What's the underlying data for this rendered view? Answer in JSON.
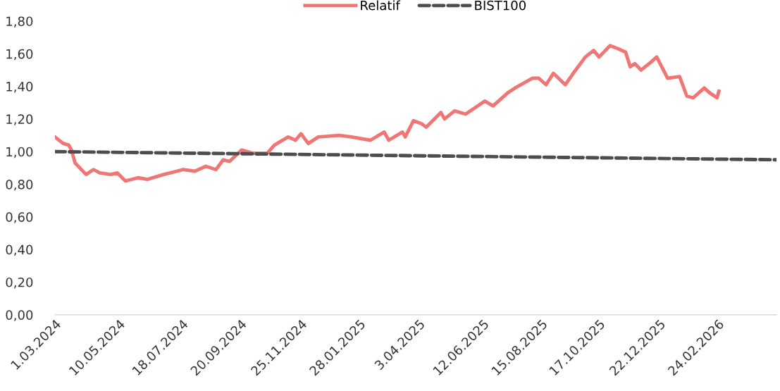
{
  "chart_data": {
    "type": "line",
    "series": [
      {
        "name": "Relatif",
        "color": "#f07575",
        "line_style": "solid",
        "x": [
          "2024-03-01",
          "2024-03-10",
          "2024-03-16",
          "2024-03-19",
          "2024-03-23",
          "2024-04-04",
          "2024-04-12",
          "2024-04-19",
          "2024-05-01",
          "2024-05-08",
          "2024-05-17",
          "2024-05-31",
          "2024-06-10",
          "2024-06-28",
          "2024-07-19",
          "2024-08-01",
          "2024-08-13",
          "2024-08-24",
          "2024-09-01",
          "2024-09-08",
          "2024-09-21",
          "2024-10-04",
          "2024-10-19",
          "2024-10-27",
          "2024-11-11",
          "2024-11-19",
          "2024-11-25",
          "2024-12-03",
          "2024-12-14",
          "2025-01-06",
          "2025-01-19",
          "2025-02-09",
          "2025-02-24",
          "2025-03-01",
          "2025-03-16",
          "2025-03-19",
          "2025-03-28",
          "2025-04-06",
          "2025-04-11",
          "2025-04-27",
          "2025-05-01",
          "2025-05-12",
          "2025-05-24",
          "2025-06-14",
          "2025-06-23",
          "2025-07-09",
          "2025-07-17",
          "2025-08-05",
          "2025-08-12",
          "2025-08-20",
          "2025-08-28",
          "2025-09-10",
          "2025-09-20",
          "2025-10-02",
          "2025-10-11",
          "2025-10-17",
          "2025-10-29",
          "2025-11-07",
          "2025-11-15",
          "2025-11-20",
          "2025-11-25",
          "2025-12-02",
          "2025-12-13",
          "2025-12-19",
          "2025-12-31",
          "2026-01-13",
          "2026-01-21",
          "2026-01-28",
          "2026-02-09",
          "2026-02-15",
          "2026-02-23",
          "2026-02-25"
        ],
        "values": [
          1.09,
          1.05,
          1.04,
          1.01,
          0.93,
          0.86,
          0.89,
          0.87,
          0.86,
          0.87,
          0.82,
          0.84,
          0.83,
          0.86,
          0.89,
          0.88,
          0.91,
          0.89,
          0.95,
          0.94,
          1.01,
          0.99,
          0.99,
          1.04,
          1.09,
          1.07,
          1.11,
          1.05,
          1.09,
          1.1,
          1.09,
          1.07,
          1.12,
          1.07,
          1.12,
          1.09,
          1.19,
          1.17,
          1.15,
          1.24,
          1.2,
          1.25,
          1.23,
          1.31,
          1.28,
          1.36,
          1.39,
          1.45,
          1.45,
          1.41,
          1.48,
          1.41,
          1.49,
          1.58,
          1.62,
          1.58,
          1.65,
          1.63,
          1.61,
          1.52,
          1.54,
          1.5,
          1.55,
          1.58,
          1.45,
          1.46,
          1.34,
          1.33,
          1.39,
          1.36,
          1.33,
          1.37
        ]
      },
      {
        "name": "BIST100",
        "color": "#4d4d4d",
        "line_style": "dashed",
        "x": [
          "2024-03-01",
          "2025-06-14",
          "2026-04-29"
        ],
        "values": [
          1.0,
          0.97,
          0.95
        ]
      }
    ],
    "ylim": [
      0,
      1.8
    ],
    "yticks": [
      {
        "value": 0,
        "label": "0,00"
      },
      {
        "value": 0.2,
        "label": "0,20"
      },
      {
        "value": 0.4,
        "label": "0,40"
      },
      {
        "value": 0.6,
        "label": "0,60"
      },
      {
        "value": 0.8,
        "label": "0,80"
      },
      {
        "value": 1.0,
        "label": "1,00"
      },
      {
        "value": 1.2,
        "label": "1,20"
      },
      {
        "value": 1.4,
        "label": "1,40"
      },
      {
        "value": 1.6,
        "label": "1,60"
      },
      {
        "value": 1.8,
        "label": "1,80"
      }
    ],
    "xticks": [
      {
        "value": "2024-03-01",
        "label": "1.03.2024"
      },
      {
        "value": "2024-05-10",
        "label": "10.05.2024"
      },
      {
        "value": "2024-07-18",
        "label": "18.07.2024"
      },
      {
        "value": "2024-09-20",
        "label": "20.09.2024"
      },
      {
        "value": "2024-11-25",
        "label": "25.11.2024"
      },
      {
        "value": "2025-01-28",
        "label": "28.01.2025"
      },
      {
        "value": "2025-04-03",
        "label": "3.04.2025"
      },
      {
        "value": "2025-06-12",
        "label": "12.06.2025"
      },
      {
        "value": "2025-08-15",
        "label": "15.08.2025"
      },
      {
        "value": "2025-10-17",
        "label": "17.10.2025"
      },
      {
        "value": "2025-12-22",
        "label": "22.12.2025"
      },
      {
        "value": "2026-02-24",
        "label": "24.02.2026"
      }
    ],
    "xlim": [
      "2024-03-01",
      "2026-04-29"
    ],
    "grid": false,
    "legend": "top",
    "marker": "none"
  }
}
